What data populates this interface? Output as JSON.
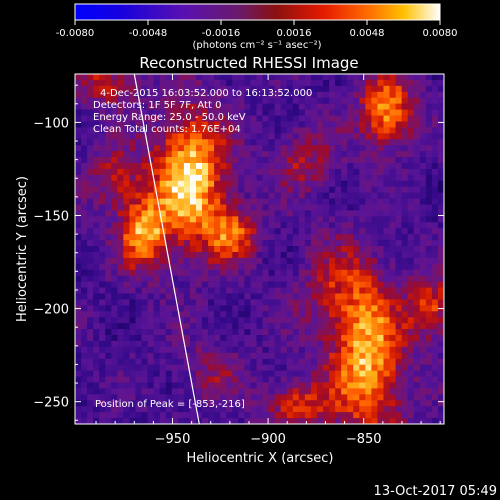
{
  "chart_data": {
    "type": "heatmap",
    "title": "Reconstructed RHESSI Image",
    "xlabel": "Heliocentric X (arcsec)",
    "ylabel": "Heliocentric Y (arcsec)",
    "xlim": [
      -1001,
      -808
    ],
    "ylim": [
      -262,
      -74
    ],
    "x_ticks": [
      -950,
      -900,
      -850
    ],
    "y_ticks": [
      -100,
      -150,
      -200,
      -250
    ],
    "colorbar": {
      "min": -0.008,
      "max": 0.008,
      "ticks": [
        "-0.0080",
        "-0.0048",
        "-0.0016",
        "0.0016",
        "0.0048",
        "0.0080"
      ],
      "unit_label": "(photons cm⁻² s⁻¹ asec⁻²)"
    },
    "annotations": {
      "time_range": "4-Dec-2015 16:03:52.000 to 16:13:52.000",
      "detectors": "Detectors: 1F 5F 7F, Att 0",
      "energy_range": "Energy Range: 25.0 - 50.0 keV",
      "algorithm": "Clean   Total counts: 1.76E+04"
    },
    "peak_position_label": "Position of Peak = [-853,-216]",
    "peak": [
      -853,
      -216
    ],
    "limb_line": [
      [
        -970,
        -74
      ],
      [
        -936,
        -262
      ]
    ],
    "sources": [
      {
        "x": -940,
        "y": -130,
        "sx": 14,
        "sy": 26,
        "a": 1.0
      },
      {
        "x": -965,
        "y": -160,
        "sx": 9,
        "sy": 14,
        "a": 0.8
      },
      {
        "x": -918,
        "y": -160,
        "sx": 10,
        "sy": 10,
        "a": 0.6
      },
      {
        "x": -836,
        "y": -94,
        "sx": 10,
        "sy": 14,
        "a": 0.85
      },
      {
        "x": -846,
        "y": -230,
        "sx": 14,
        "sy": 30,
        "a": 0.85
      },
      {
        "x": -884,
        "y": -252,
        "sx": 12,
        "sy": 9,
        "a": 0.55
      },
      {
        "x": -862,
        "y": -190,
        "sx": 16,
        "sy": 20,
        "a": 0.35
      },
      {
        "x": -985,
        "y": -80,
        "sx": 12,
        "sy": 8,
        "a": 0.5
      },
      {
        "x": -980,
        "y": -130,
        "sx": 10,
        "sy": 12,
        "a": 0.45
      },
      {
        "x": -880,
        "y": -120,
        "sx": 12,
        "sy": 12,
        "a": 0.4
      },
      {
        "x": -812,
        "y": -200,
        "sx": 8,
        "sy": 12,
        "a": 0.6
      },
      {
        "x": -930,
        "y": -235,
        "sx": 12,
        "sy": 12,
        "a": 0.3
      }
    ]
  },
  "footer_timestamp": "13-Oct-2017 05:49"
}
